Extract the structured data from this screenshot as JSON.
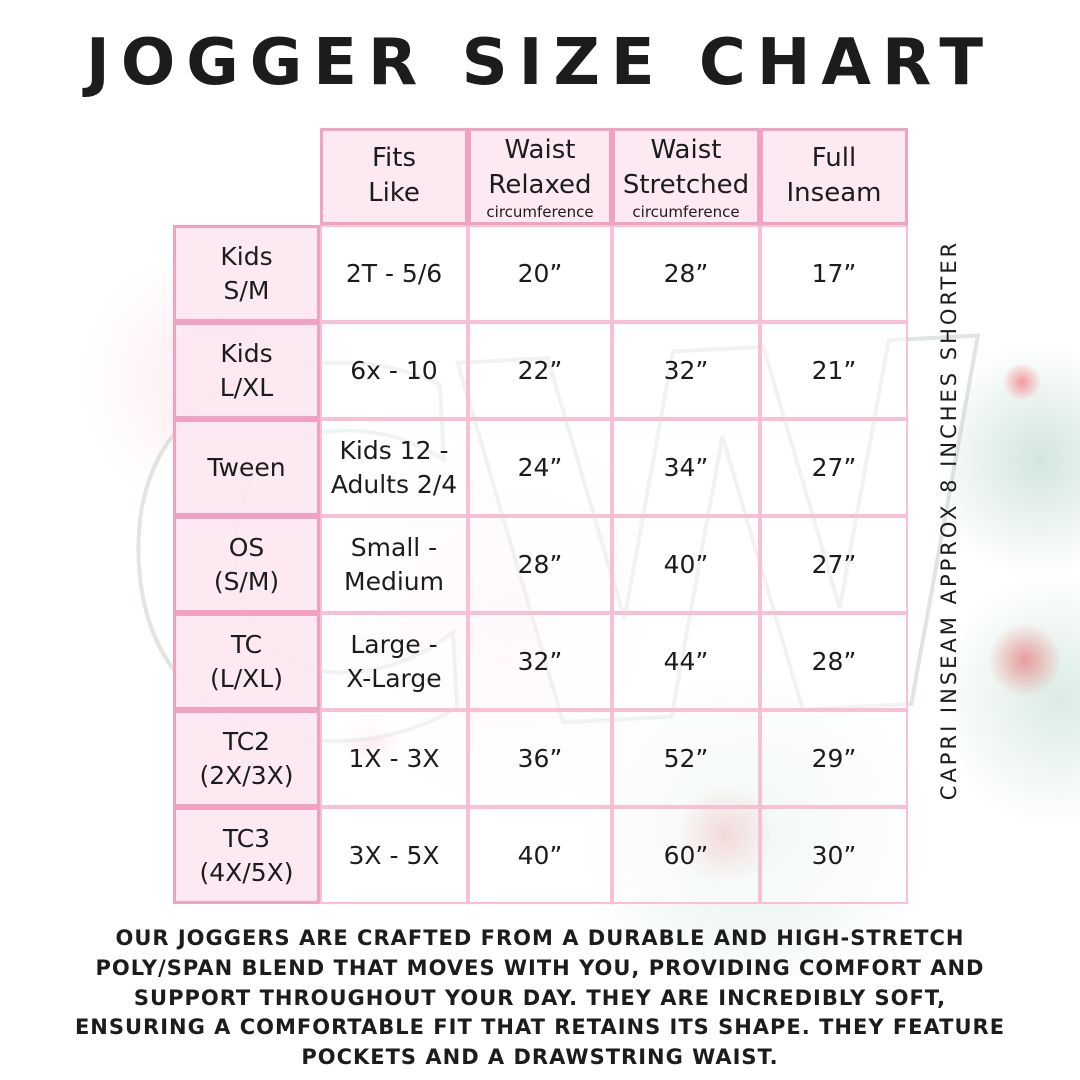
{
  "title": "JOGGER SIZE CHART",
  "watermark": "CW",
  "colors": {
    "cell_pink_fill": "#fce7f0",
    "border_strong_pink": "#f2a2c1",
    "border_light_pink": "#f9bfd3",
    "text": "#1c1c1c",
    "watercolor_teal": "#c8e2d6",
    "watercolor_red": "#e26262"
  },
  "table": {
    "headers": [
      {
        "label": "Fits\nLike",
        "sub": ""
      },
      {
        "label": "Waist\nRelaxed",
        "sub": "circumference"
      },
      {
        "label": "Waist\nStretched",
        "sub": "circumference"
      },
      {
        "label": "Full\nInseam",
        "sub": ""
      }
    ],
    "rows": [
      {
        "label": "Kids\nS/M",
        "fits": "2T - 5/6",
        "relaxed": "20”",
        "stretched": "28”",
        "inseam": "17”"
      },
      {
        "label": "Kids\nL/XL",
        "fits": "6x - 10",
        "relaxed": "22”",
        "stretched": "32”",
        "inseam": "21”"
      },
      {
        "label": "Tween",
        "fits": "Kids 12 -\nAdults 2/4",
        "relaxed": "24”",
        "stretched": "34”",
        "inseam": "27”"
      },
      {
        "label": "OS\n(S/M)",
        "fits": "Small -\nMedium",
        "relaxed": "28”",
        "stretched": "40”",
        "inseam": "27”"
      },
      {
        "label": "TC\n(L/XL)",
        "fits": "Large -\nX-Large",
        "relaxed": "32”",
        "stretched": "44”",
        "inseam": "28”"
      },
      {
        "label": "TC2\n(2X/3X)",
        "fits": "1X - 3X",
        "relaxed": "36”",
        "stretched": "52”",
        "inseam": "29”"
      },
      {
        "label": "TC3\n(4X/5X)",
        "fits": "3X - 5X",
        "relaxed": "40”",
        "stretched": "60”",
        "inseam": "30”"
      }
    ]
  },
  "side_note": "CAPRI INSEAM APPROX 8 INCHES SHORTER",
  "footer": "OUR JOGGERS ARE CRAFTED FROM A DURABLE AND HIGH-STRETCH\nPOLY/SPAN BLEND THAT MOVES WITH YOU, PROVIDING COMFORT AND\nSUPPORT THROUGHOUT YOUR DAY. THEY ARE INCREDIBLY SOFT,\nENSURING A COMFORTABLE FIT THAT RETAINS ITS SHAPE. THEY FEATURE\nPOCKETS AND A DRAWSTRING WAIST."
}
